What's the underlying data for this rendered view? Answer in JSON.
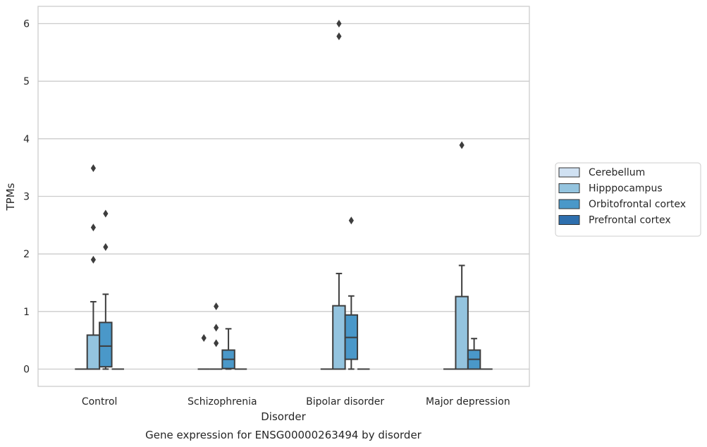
{
  "chart_data": {
    "type": "box",
    "title": "Gene expression for ENSG00000263494 by disorder",
    "xlabel": "Disorder",
    "ylabel": "TPMs",
    "ylim": [
      -0.3,
      6.3
    ],
    "yticks": [
      0,
      1,
      2,
      3,
      4,
      5,
      6
    ],
    "grid": true,
    "legend_position": "right",
    "categories": [
      "Control",
      "Schizophrenia",
      "Bipolar disorder",
      "Major depression"
    ],
    "series": [
      {
        "name": "Cerebellum",
        "color": "#d0e1f2",
        "boxes": [
          {
            "q1": 0,
            "median": 0,
            "q3": 0,
            "whisker_low": 0,
            "whisker_high": 0,
            "outliers": []
          },
          {
            "q1": 0,
            "median": 0,
            "q3": 0,
            "whisker_low": 0,
            "whisker_high": 0,
            "outliers": [
              0.54
            ]
          },
          {
            "q1": 0,
            "median": 0,
            "q3": 0,
            "whisker_low": 0,
            "whisker_high": 0,
            "outliers": []
          },
          {
            "q1": 0,
            "median": 0,
            "q3": 0,
            "whisker_low": 0,
            "whisker_high": 0,
            "outliers": []
          }
        ]
      },
      {
        "name": "Hipppocampus",
        "color": "#94c4df",
        "boxes": [
          {
            "q1": 0,
            "median": 0,
            "q3": 0.59,
            "whisker_low": 0,
            "whisker_high": 1.17,
            "outliers": [
              1.9,
              2.46,
              3.49
            ]
          },
          {
            "q1": 0,
            "median": 0,
            "q3": 0,
            "whisker_low": 0,
            "whisker_high": 0,
            "outliers": [
              0.45,
              0.72,
              1.09
            ]
          },
          {
            "q1": 0,
            "median": 0,
            "q3": 1.1,
            "whisker_low": 0,
            "whisker_high": 1.66,
            "outliers": [
              5.78,
              6.0
            ]
          },
          {
            "q1": 0,
            "median": 0,
            "q3": 1.26,
            "whisker_low": 0,
            "whisker_high": 1.8,
            "outliers": [
              3.89
            ]
          }
        ]
      },
      {
        "name": "Orbitofrontal cortex",
        "color": "#4a98c9",
        "boxes": [
          {
            "q1": 0.04,
            "median": 0.4,
            "q3": 0.81,
            "whisker_low": 0,
            "whisker_high": 1.3,
            "outliers": [
              2.12,
              2.7
            ]
          },
          {
            "q1": 0.01,
            "median": 0.17,
            "q3": 0.33,
            "whisker_low": 0,
            "whisker_high": 0.7,
            "outliers": []
          },
          {
            "q1": 0.17,
            "median": 0.55,
            "q3": 0.94,
            "whisker_low": 0,
            "whisker_high": 1.27,
            "outliers": [
              2.58
            ]
          },
          {
            "q1": 0,
            "median": 0.17,
            "q3": 0.33,
            "whisker_low": 0,
            "whisker_high": 0.53,
            "outliers": []
          }
        ]
      },
      {
        "name": "Prefrontal cortex",
        "color": "#2e6fae",
        "boxes": [
          {
            "q1": 0,
            "median": 0,
            "q3": 0,
            "whisker_low": 0,
            "whisker_high": 0,
            "outliers": []
          },
          {
            "q1": 0,
            "median": 0,
            "q3": 0,
            "whisker_low": 0,
            "whisker_high": 0,
            "outliers": []
          },
          {
            "q1": 0,
            "median": 0,
            "q3": 0,
            "whisker_low": 0,
            "whisker_high": 0,
            "outliers": []
          },
          {
            "q1": 0,
            "median": 0,
            "q3": 0,
            "whisker_low": 0,
            "whisker_high": 0,
            "outliers": []
          }
        ]
      }
    ]
  }
}
